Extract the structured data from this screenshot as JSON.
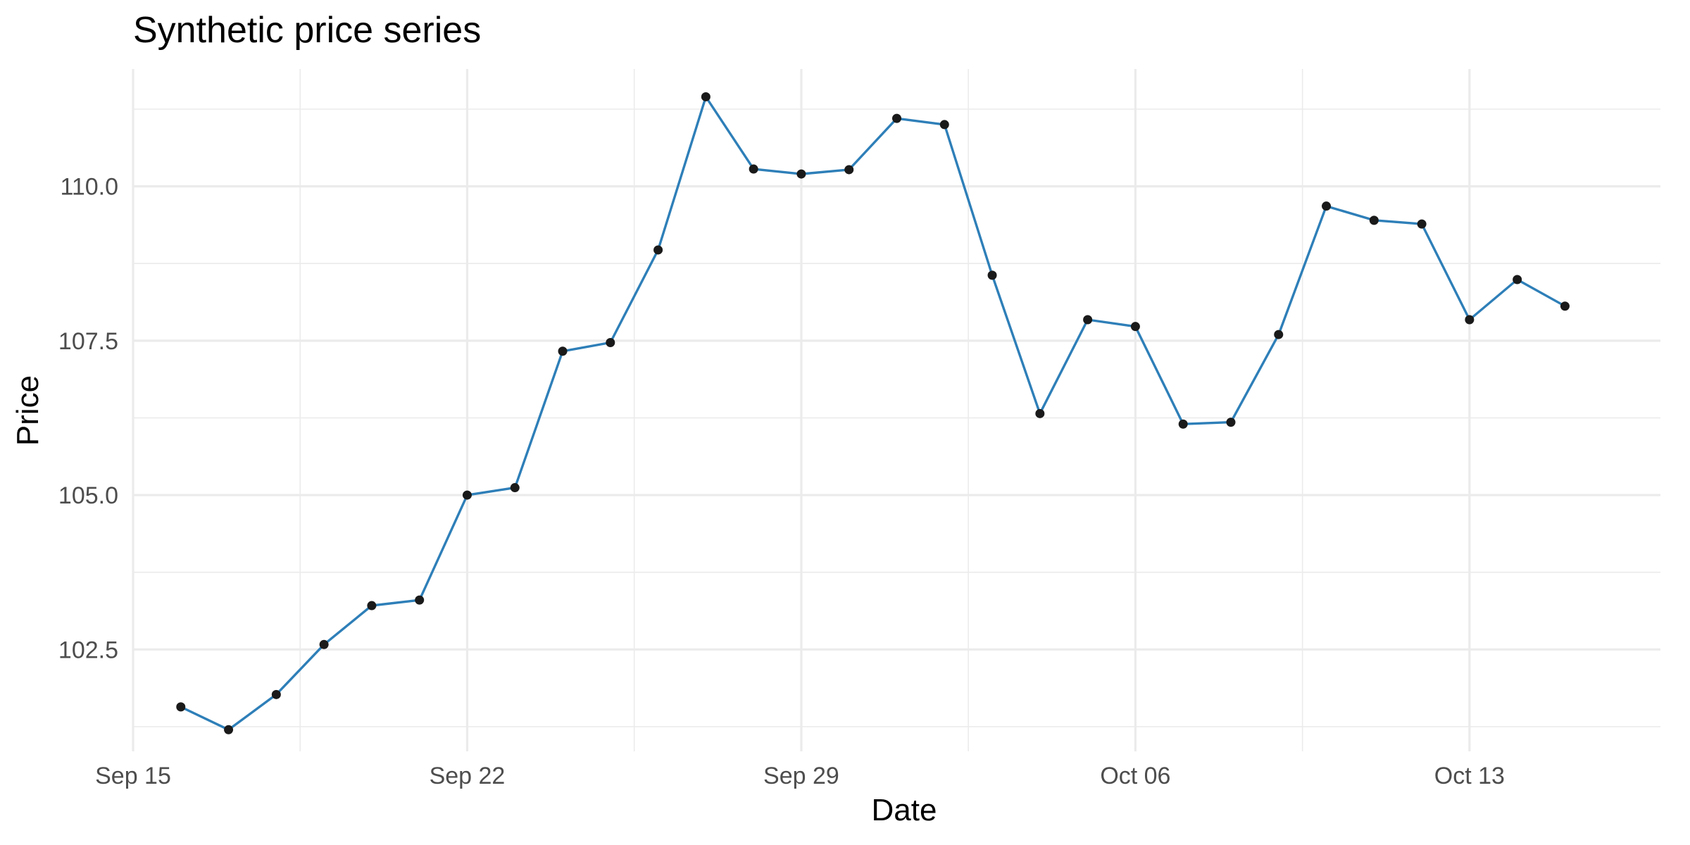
{
  "chart_data": {
    "type": "line",
    "title": "Synthetic price series",
    "xlabel": "Date",
    "ylabel": "Price",
    "x": [
      "2024-09-16",
      "2024-09-17",
      "2024-09-18",
      "2024-09-19",
      "2024-09-20",
      "2024-09-21",
      "2024-09-22",
      "2024-09-23",
      "2024-09-24",
      "2024-09-25",
      "2024-09-26",
      "2024-09-27",
      "2024-09-28",
      "2024-09-29",
      "2024-09-30",
      "2024-10-01",
      "2024-10-02",
      "2024-10-03",
      "2024-10-04",
      "2024-10-05",
      "2024-10-06",
      "2024-10-07",
      "2024-10-08",
      "2024-10-09",
      "2024-10-10",
      "2024-10-11",
      "2024-10-12",
      "2024-10-13",
      "2024-10-14",
      "2024-10-15"
    ],
    "series": [
      {
        "values": [
          101.57,
          101.2,
          101.77,
          102.58,
          103.21,
          103.3,
          105.0,
          105.12,
          107.33,
          107.47,
          108.97,
          111.45,
          110.28,
          110.2,
          110.27,
          111.1,
          111.0,
          108.56,
          106.32,
          107.84,
          107.73,
          106.15,
          106.18,
          107.6,
          109.68,
          109.45,
          109.39,
          107.84,
          108.49,
          108.06
        ],
        "color": "#2e7fb8"
      }
    ],
    "marker_color": "#1a1a1a",
    "xlim": [
      "2024-09-15",
      "2024-10-17"
    ],
    "ylim": [
      100.85,
      111.9
    ],
    "x_ticks": [
      {
        "date": "2024-09-15",
        "label": "Sep 15"
      },
      {
        "date": "2024-09-22",
        "label": "Sep 22"
      },
      {
        "date": "2024-09-29",
        "label": "Sep 29"
      },
      {
        "date": "2024-10-06",
        "label": "Oct 06"
      },
      {
        "date": "2024-10-13",
        "label": "Oct 13"
      }
    ],
    "x_minor_ticks": [
      "2024-09-18T12:00",
      "2024-09-25T12:00",
      "2024-10-02T12:00",
      "2024-10-09T12:00"
    ],
    "y_ticks": [
      {
        "value": 102.5,
        "label": "102.5"
      },
      {
        "value": 105.0,
        "label": "105.0"
      },
      {
        "value": 107.5,
        "label": "107.5"
      },
      {
        "value": 110.0,
        "label": "110.0"
      }
    ],
    "y_minor_ticks": [
      101.25,
      103.75,
      106.25,
      108.75,
      111.25
    ],
    "grid": true,
    "grid_color": "#ebebeb",
    "legend": "none"
  }
}
